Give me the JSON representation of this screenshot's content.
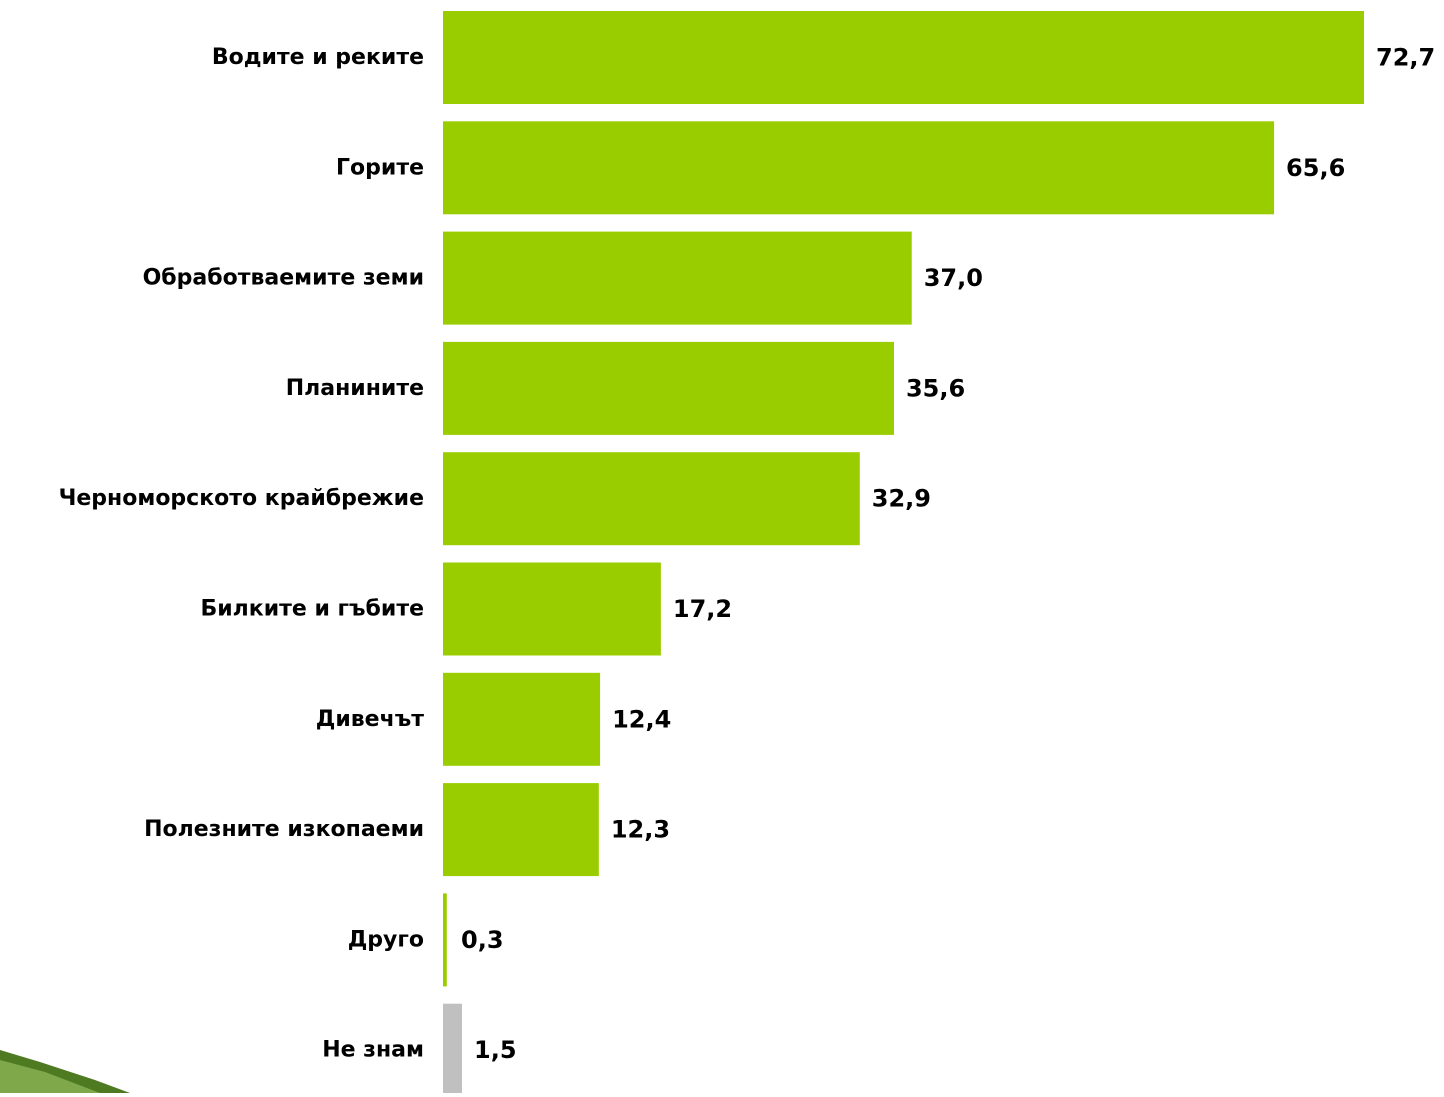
{
  "chart_data": {
    "type": "bar",
    "orientation": "horizontal",
    "title": "",
    "xlabel": "",
    "ylabel": "",
    "categories": [
      "Водите и реките",
      "Горите",
      "Обработваемите земи",
      "Планините",
      "Черноморското крайбрежие",
      "Билките и гъбите",
      "Дивечът",
      "Полезните изкопаеми",
      "Друго",
      "Не знам"
    ],
    "values": [
      72.7,
      65.6,
      37.0,
      35.6,
      32.9,
      17.2,
      12.4,
      12.3,
      0.3,
      1.5
    ],
    "value_labels": [
      "72,7",
      "65,6",
      "37,0",
      "35,6",
      "32,9",
      "17,2",
      "12,4",
      "12,3",
      "0,3",
      "1,5"
    ],
    "bar_colors": [
      "#9ACD00",
      "#9ACD00",
      "#9ACD00",
      "#9ACD00",
      "#9ACD00",
      "#9ACD00",
      "#9ACD00",
      "#9ACD00",
      "#9ACD00",
      "#C0C0C0"
    ],
    "xlim": [
      0,
      72.7
    ],
    "grid": false,
    "legend": "none"
  },
  "colors": {
    "accent": "#9ACD00",
    "neutral": "#C0C0C0",
    "text": "#000000",
    "corner_decoration": "#4E7A22"
  }
}
